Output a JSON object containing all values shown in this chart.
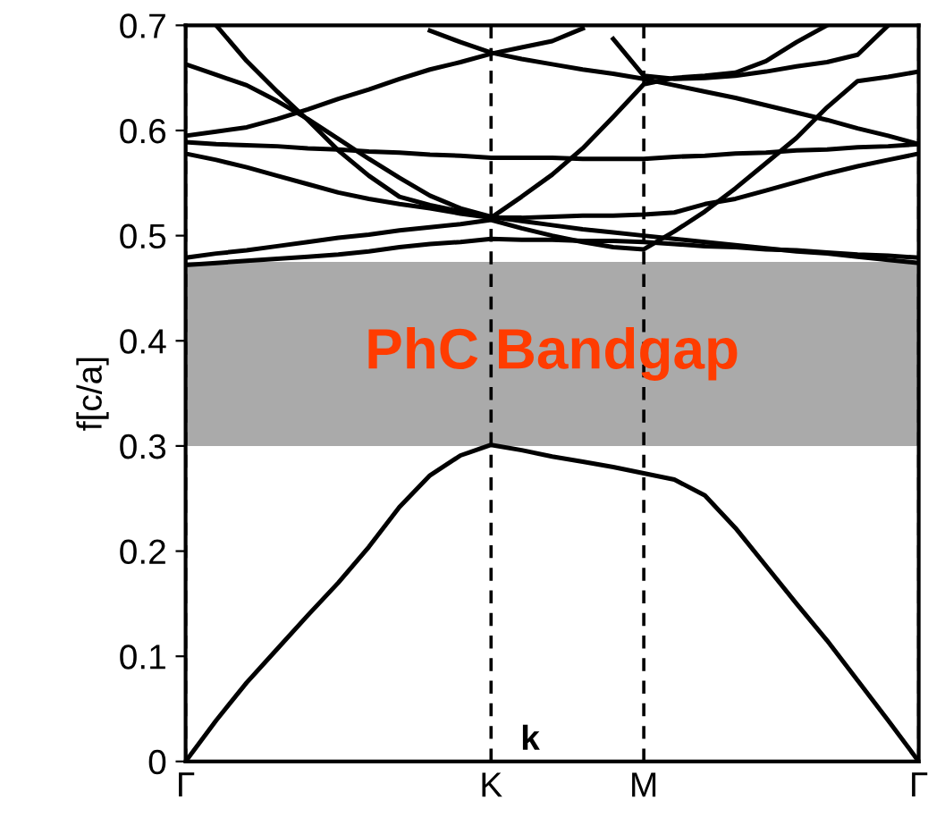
{
  "chart_data": {
    "type": "line",
    "xlabel": "k",
    "ylabel": "f[c/a]",
    "categories": [
      "Γ",
      null,
      null,
      null,
      null,
      null,
      null,
      null,
      null,
      null,
      "K",
      null,
      null,
      null,
      null,
      "M",
      null,
      null,
      null,
      null,
      null,
      null,
      null,
      null,
      "Γ"
    ],
    "ylim": [
      0,
      0.7
    ],
    "yticks": [
      0,
      0.1,
      0.2,
      0.3,
      0.4,
      0.5,
      0.6,
      0.7
    ],
    "grid": "x",
    "marker": "none",
    "line_style": "solid",
    "bands": [
      {
        "axis": "y",
        "from": 0.3,
        "to": 0.475,
        "label": "PhC Bandgap",
        "color": "#aaaaaa"
      }
    ],
    "series": [
      {
        "color": "#000000",
        "values": [
          0,
          0.039,
          0.075,
          0.107,
          0.139,
          0.17,
          0.204,
          0.242,
          0.272,
          0.291,
          0.301,
          0.296,
          0.29,
          0.285,
          0.28,
          0.274,
          0.268,
          0.253,
          0.222,
          0.186,
          0.15,
          0.115,
          0.077,
          0.039,
          0
        ]
      },
      {
        "color": "#000000",
        "values": [
          0.472,
          0.474,
          0.476,
          0.478,
          0.48,
          0.482,
          0.485,
          0.489,
          0.492,
          0.494,
          0.497,
          0.496,
          0.496,
          0.495,
          0.495,
          0.494,
          0.492,
          0.49,
          0.489,
          0.487,
          0.486,
          0.484,
          0.482,
          0.481,
          0.479
        ]
      },
      {
        "color": "#000000",
        "values": [
          0.479,
          0.483,
          0.486,
          0.49,
          0.494,
          0.498,
          0.501,
          0.505,
          0.508,
          0.511,
          0.515,
          0.507,
          0.5,
          0.494,
          0.489,
          0.487,
          0.504,
          0.523,
          0.545,
          0.569,
          0.593,
          0.622,
          0.647,
          0.651,
          0.656
        ]
      },
      {
        "color": "#000000",
        "values": [
          0.578,
          0.572,
          0.565,
          0.557,
          0.549,
          0.541,
          0.535,
          0.53,
          0.526,
          0.521,
          0.517,
          0.517,
          0.518,
          0.519,
          0.519,
          0.52,
          0.522,
          0.53,
          0.535,
          0.543,
          0.551,
          0.559,
          0.566,
          0.572,
          0.578
        ]
      },
      {
        "color": "#000000",
        "values": [
          0.663,
          0.653,
          0.643,
          0.628,
          0.611,
          0.592,
          0.573,
          0.555,
          0.538,
          0.526,
          0.518,
          0.514,
          0.51,
          0.506,
          0.503,
          0.5,
          0.497,
          0.494,
          0.491,
          0.488,
          0.485,
          0.483,
          0.48,
          0.477,
          0.474
        ]
      },
      {
        "color": "#000000",
        "values": [
          null,
          0.7,
          0.666,
          0.637,
          0.61,
          0.581,
          0.557,
          0.537,
          0.529,
          0.523,
          0.517,
          0.537,
          0.558,
          0.583,
          0.613,
          0.644,
          0.65,
          0.652,
          0.655,
          0.666,
          0.684,
          0.7,
          null,
          null,
          null
        ]
      },
      {
        "color": "#000000",
        "values": [
          0.595,
          0.599,
          0.603,
          0.611,
          0.62,
          0.63,
          0.639,
          0.649,
          0.658,
          0.665,
          0.673,
          0.679,
          0.685,
          0.697,
          null,
          null,
          null,
          null,
          null,
          null,
          null,
          null,
          null,
          null,
          null
        ]
      },
      {
        "color": "#000000",
        "values": [
          0.589,
          0.587,
          0.586,
          0.585,
          0.583,
          0.582,
          0.58,
          0.579,
          0.577,
          0.576,
          0.574,
          0.574,
          0.574,
          0.573,
          0.573,
          0.573,
          0.575,
          0.576,
          0.578,
          0.579,
          0.581,
          0.582,
          0.584,
          0.585,
          0.587
        ]
      },
      {
        "color": "#000000",
        "values": [
          null,
          null,
          null,
          null,
          null,
          null,
          null,
          null,
          0.695,
          0.684,
          0.674,
          0.668,
          0.663,
          0.658,
          0.654,
          0.649,
          0.643,
          0.637,
          0.631,
          0.624,
          0.617,
          0.61,
          0.602,
          0.595,
          0.587
        ]
      },
      {
        "color": "#000000",
        "values": [
          null,
          null,
          null,
          null,
          null,
          null,
          null,
          null,
          null,
          null,
          null,
          null,
          null,
          null,
          0.687,
          0.652,
          0.649,
          0.65,
          0.652,
          0.656,
          0.661,
          0.665,
          0.672,
          0.7,
          null
        ]
      }
    ]
  }
}
